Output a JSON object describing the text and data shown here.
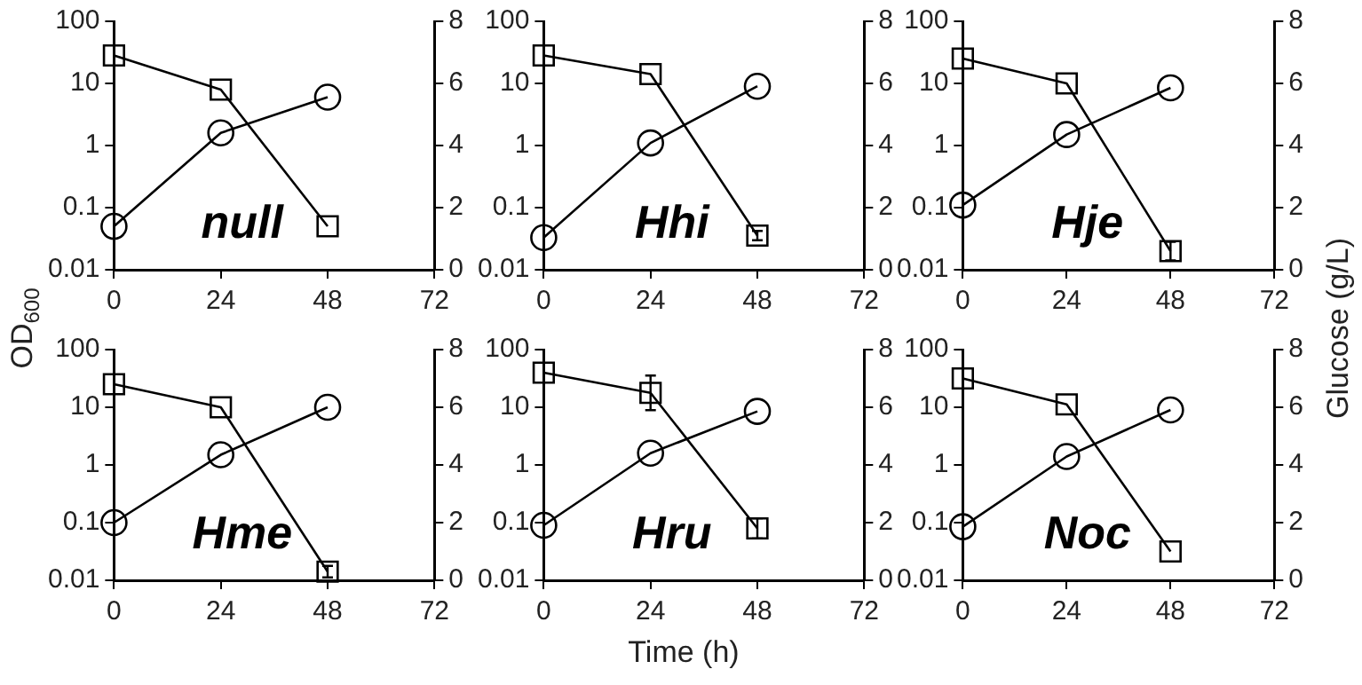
{
  "chart_data": [
    {
      "type": "line",
      "annotations": [
        "null"
      ],
      "ylabel": "OD$_{600}$",
      "x": [
        0,
        24,
        48
      ],
      "xlim": [
        0,
        72
      ],
      "xticks": [
        0,
        24,
        48,
        72
      ],
      "log": "y",
      "ylim": [
        0.01,
        100
      ],
      "yticks": [
        0.01,
        0.1,
        1,
        10,
        100
      ],
      "y2lim": [
        0,
        8
      ],
      "y2ticks": [
        0,
        2,
        4,
        6,
        8
      ],
      "grid": false,
      "legend": false,
      "series": [
        {
          "color": "#000000",
          "marker": "circle",
          "values": [
            0.05,
            1.6,
            6
          ]
        },
        {
          "color": "#000000",
          "marker": "square",
          "axis": "y2",
          "values": [
            6.9,
            5.8,
            1.4
          ]
        }
      ]
    },
    {
      "type": "line",
      "annotations": [
        "Hhi"
      ],
      "x": [
        0,
        24,
        48
      ],
      "xlim": [
        0,
        72
      ],
      "xticks": [
        0,
        24,
        48,
        72
      ],
      "log": "y",
      "ylim": [
        0.01,
        100
      ],
      "yticks": [
        0.01,
        0.1,
        1,
        10,
        100
      ],
      "y2lim": [
        0,
        8
      ],
      "y2ticks": [
        0,
        2,
        4,
        6,
        8
      ],
      "grid": false,
      "legend": false,
      "series": [
        {
          "color": "#000000",
          "marker": "circle",
          "values": [
            0.033,
            1.1,
            9
          ]
        },
        {
          "color": "#000000",
          "marker": "square",
          "axis": "y2",
          "values": [
            6.9,
            6.3,
            1.1
          ],
          "errors": [
            null,
            null,
            0.15
          ]
        }
      ]
    },
    {
      "type": "line",
      "annotations": [
        "Hje"
      ],
      "y2label": "Glucose (g/L)",
      "x": [
        0,
        24,
        48
      ],
      "xlim": [
        0,
        72
      ],
      "xticks": [
        0,
        24,
        48,
        72
      ],
      "log": "y",
      "ylim": [
        0.01,
        100
      ],
      "yticks": [
        0.01,
        0.1,
        1,
        10,
        100
      ],
      "y2lim": [
        0,
        8
      ],
      "y2ticks": [
        0,
        2,
        4,
        6,
        8
      ],
      "grid": false,
      "legend": false,
      "series": [
        {
          "color": "#000000",
          "marker": "circle",
          "values": [
            0.11,
            1.5,
            8.5
          ]
        },
        {
          "color": "#000000",
          "marker": "square",
          "axis": "y2",
          "values": [
            6.8,
            6.0,
            0.6
          ],
          "errors": [
            null,
            null,
            0.3
          ]
        }
      ]
    },
    {
      "type": "line",
      "annotations": [
        "Hme"
      ],
      "x": [
        0,
        24,
        48
      ],
      "xlim": [
        0,
        72
      ],
      "xticks": [
        0,
        24,
        48,
        72
      ],
      "log": "y",
      "ylim": [
        0.01,
        100
      ],
      "yticks": [
        0.01,
        0.1,
        1,
        10,
        100
      ],
      "y2lim": [
        0,
        8
      ],
      "y2ticks": [
        0,
        2,
        4,
        6,
        8
      ],
      "grid": false,
      "legend": false,
      "series": [
        {
          "color": "#000000",
          "marker": "circle",
          "values": [
            0.1,
            1.5,
            10
          ]
        },
        {
          "color": "#000000",
          "marker": "square",
          "axis": "y2",
          "values": [
            6.8,
            6.0,
            0.3
          ],
          "errors": [
            null,
            null,
            0.2
          ]
        }
      ]
    },
    {
      "type": "line",
      "annotations": [
        "Hru"
      ],
      "xlabel": "Time (h)",
      "x": [
        0,
        24,
        48
      ],
      "xlim": [
        0,
        72
      ],
      "xticks": [
        0,
        24,
        48,
        72
      ],
      "log": "y",
      "ylim": [
        0.01,
        100
      ],
      "yticks": [
        0.01,
        0.1,
        1,
        10,
        100
      ],
      "y2lim": [
        0,
        8
      ],
      "y2ticks": [
        0,
        2,
        4,
        6,
        8
      ],
      "grid": false,
      "legend": false,
      "series": [
        {
          "color": "#000000",
          "marker": "circle",
          "values": [
            0.09,
            1.6,
            8.5
          ]
        },
        {
          "color": "#000000",
          "marker": "square",
          "axis": "y2",
          "values": [
            7.2,
            6.5,
            1.8
          ],
          "errors": [
            null,
            0.6,
            0.35
          ]
        }
      ]
    },
    {
      "type": "line",
      "annotations": [
        "Noc"
      ],
      "x": [
        0,
        24,
        48
      ],
      "xlim": [
        0,
        72
      ],
      "xticks": [
        0,
        24,
        48,
        72
      ],
      "log": "y",
      "ylim": [
        0.01,
        100
      ],
      "yticks": [
        0.01,
        0.1,
        1,
        10,
        100
      ],
      "y2lim": [
        0,
        8
      ],
      "y2ticks": [
        0,
        2,
        4,
        6,
        8
      ],
      "grid": false,
      "legend": false,
      "series": [
        {
          "color": "#000000",
          "marker": "circle",
          "values": [
            0.085,
            1.4,
            9
          ]
        },
        {
          "color": "#000000",
          "marker": "square",
          "axis": "y2",
          "values": [
            7.0,
            6.1,
            1.0
          ]
        }
      ]
    }
  ]
}
